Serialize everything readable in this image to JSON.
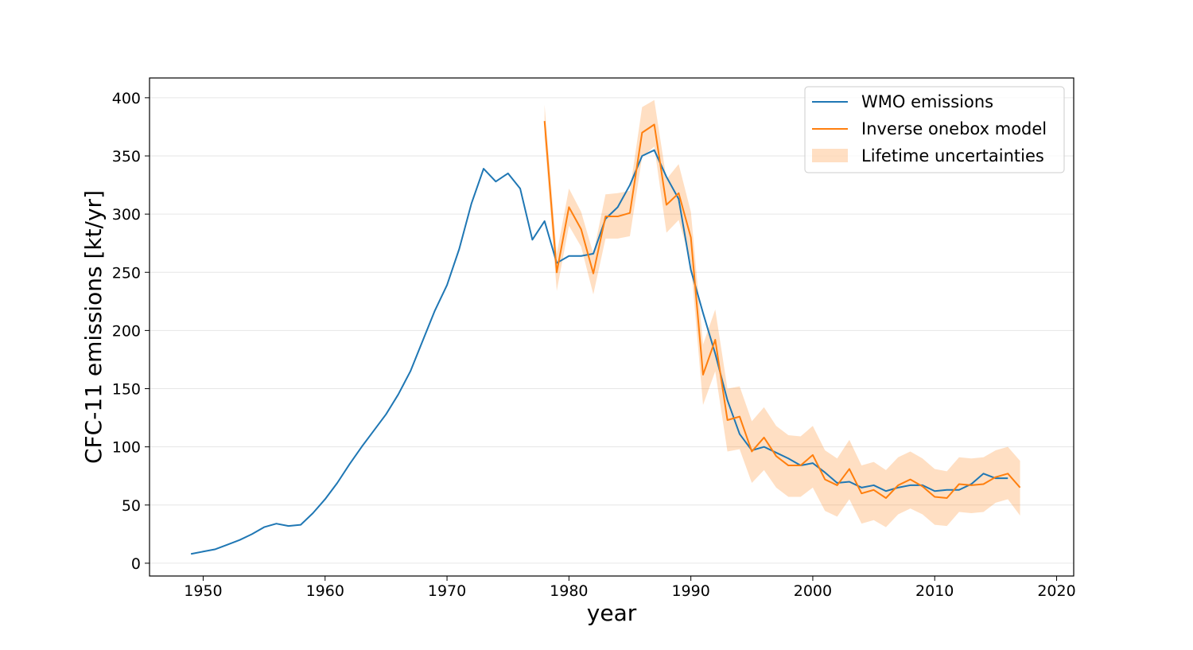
{
  "chart_data": {
    "type": "line",
    "title": "",
    "xlabel": "year",
    "ylabel": "CFC-11 emissions [kt/yr]",
    "xlim": [
      1945.6,
      2021.4
    ],
    "ylim": [
      -11,
      417
    ],
    "x_ticks": [
      1950,
      1960,
      1970,
      1980,
      1990,
      2000,
      2010,
      2020
    ],
    "x_tick_labels": [
      "1950",
      "1960",
      "1970",
      "1980",
      "1990",
      "2000",
      "2010",
      "2020"
    ],
    "y_ticks": [
      0,
      50,
      100,
      150,
      200,
      250,
      300,
      350,
      400
    ],
    "y_tick_labels": [
      "0",
      "50",
      "100",
      "150",
      "200",
      "250",
      "300",
      "350",
      "400"
    ],
    "grid": "horizontal",
    "legend_position": "top-right",
    "series": [
      {
        "name": "WMO emissions",
        "color": "#1f77b4",
        "x": [
          1949,
          1950,
          1951,
          1952,
          1953,
          1954,
          1955,
          1956,
          1957,
          1958,
          1959,
          1960,
          1961,
          1962,
          1963,
          1964,
          1965,
          1966,
          1967,
          1968,
          1969,
          1970,
          1971,
          1972,
          1973,
          1974,
          1975,
          1976,
          1977,
          1978,
          1979,
          1980,
          1981,
          1982,
          1983,
          1984,
          1985,
          1986,
          1987,
          1988,
          1989,
          1990,
          1991,
          1992,
          1993,
          1994,
          1995,
          1996,
          1997,
          1998,
          1999,
          2000,
          2001,
          2002,
          2003,
          2004,
          2005,
          2006,
          2007,
          2008,
          2009,
          2010,
          2011,
          2012,
          2013,
          2014,
          2015,
          2016
        ],
        "values": [
          8,
          10,
          12,
          16,
          20,
          25,
          31,
          34,
          32,
          33,
          43,
          55,
          69,
          85,
          100,
          114,
          128,
          145,
          165,
          191,
          217,
          239,
          270,
          309,
          339,
          328,
          335,
          322,
          278,
          294,
          258,
          264,
          264,
          266,
          296,
          306,
          325,
          350,
          355,
          332,
          313,
          252,
          215,
          180,
          140,
          111,
          97,
          100,
          95,
          90,
          84,
          86,
          78,
          69,
          70,
          65,
          67,
          62,
          65,
          67,
          67,
          62,
          63,
          63,
          68,
          77,
          73,
          73
        ]
      },
      {
        "name": "Inverse onebox model",
        "color": "#ff7f0e",
        "x": [
          1978,
          1979,
          1980,
          1981,
          1982,
          1983,
          1984,
          1985,
          1986,
          1987,
          1988,
          1989,
          1990,
          1991,
          1992,
          1993,
          1994,
          1995,
          1996,
          1997,
          1998,
          1999,
          2000,
          2001,
          2002,
          2003,
          2004,
          2005,
          2006,
          2007,
          2008,
          2009,
          2010,
          2011,
          2012,
          2013,
          2014,
          2015,
          2016,
          2017
        ],
        "values": [
          380,
          250,
          306,
          287,
          249,
          298,
          298,
          301,
          370,
          377,
          308,
          318,
          280,
          162,
          192,
          123,
          126,
          96,
          108,
          92,
          84,
          84,
          93,
          72,
          67,
          81,
          60,
          63,
          56,
          67,
          72,
          66,
          57,
          56,
          68,
          67,
          68,
          74,
          77,
          65
        ]
      }
    ],
    "band": {
      "name": "Lifetime uncertainties",
      "color": "#ff7f0e",
      "x": [
        1978,
        1979,
        1980,
        1981,
        1982,
        1983,
        1984,
        1985,
        1986,
        1987,
        1988,
        1989,
        1990,
        1991,
        1992,
        1993,
        1994,
        1995,
        1996,
        1997,
        1998,
        1999,
        2000,
        2001,
        2002,
        2003,
        2004,
        2005,
        2006,
        2007,
        2008,
        2009,
        2010,
        2011,
        2012,
        2013,
        2014,
        2015,
        2016,
        2017
      ],
      "lower": [
        366,
        234,
        290,
        272,
        231,
        279,
        279,
        281,
        349,
        358,
        284,
        295,
        258,
        136,
        165,
        96,
        98,
        69,
        80,
        65,
        57,
        57,
        65,
        45,
        40,
        55,
        34,
        37,
        31,
        42,
        47,
        42,
        33,
        32,
        44,
        43,
        44,
        52,
        55,
        41
      ],
      "upper": [
        394,
        266,
        322,
        302,
        266,
        317,
        318,
        320,
        392,
        398,
        330,
        343,
        302,
        188,
        218,
        150,
        152,
        122,
        134,
        118,
        110,
        109,
        118,
        97,
        90,
        106,
        84,
        87,
        80,
        91,
        96,
        90,
        81,
        79,
        91,
        90,
        91,
        97,
        100,
        88
      ]
    }
  }
}
